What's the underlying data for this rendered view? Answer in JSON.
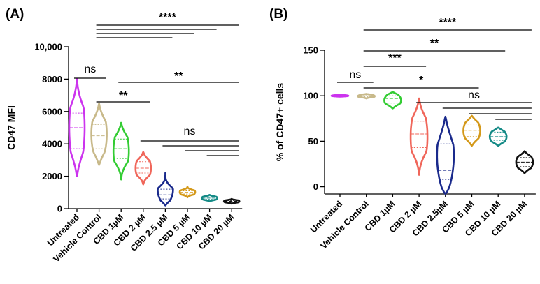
{
  "chart_data": [
    {
      "panel_label": "(A)",
      "type": "violin",
      "ylabel": "CD47 MFI",
      "ylim": [
        0,
        10000
      ],
      "yticks": [
        0,
        2000,
        4000,
        6000,
        8000,
        10000
      ],
      "ytick_labels": [
        "0",
        "2000",
        "4000",
        "6000",
        "8000",
        "10,000"
      ],
      "categories": [
        "Untreated",
        "Vehicle Control",
        "CBD 1µM",
        "CBD 2 µM",
        "CBD 2.5 µM",
        "CBD 5 µM",
        "CBD 10 µM",
        "CBD 20 µM"
      ],
      "series": [
        {
          "category": "Untreated",
          "color": "#cc33ee",
          "min": 2000,
          "max": 8000,
          "q1": 3700,
          "median": 5000,
          "q3": 5900
        },
        {
          "category": "Vehicle Control",
          "color": "#c8b98a",
          "min": 2700,
          "max": 6500,
          "q1": 3700,
          "median": 4500,
          "q3": 5200
        },
        {
          "category": "CBD 1µM",
          "color": "#33cc33",
          "min": 1800,
          "max": 5300,
          "q1": 3100,
          "median": 3700,
          "q3": 4300
        },
        {
          "category": "CBD 2 µM",
          "color": "#f0665a",
          "min": 1500,
          "max": 3500,
          "q1": 2200,
          "median": 2500,
          "q3": 2900
        },
        {
          "category": "CBD 2.5 µM",
          "color": "#1a2a8c",
          "min": 200,
          "max": 2200,
          "q1": 600,
          "median": 850,
          "q3": 1200
        },
        {
          "category": "CBD 5 µM",
          "color": "#d4991a",
          "min": 700,
          "max": 1350,
          "q1": 900,
          "median": 1000,
          "q3": 1100
        },
        {
          "category": "CBD 10 µM",
          "color": "#148a86",
          "min": 450,
          "max": 850,
          "q1": 570,
          "median": 650,
          "q3": 720
        },
        {
          "category": "CBD 20 µM",
          "color": "#111111",
          "min": 300,
          "max": 600,
          "q1": 400,
          "median": 450,
          "q3": 500
        }
      ],
      "significance": [
        {
          "from": 0,
          "to": 1,
          "label": "ns"
        },
        {
          "from": 1,
          "to": 3,
          "label": "**"
        },
        {
          "from": 2,
          "to": 7,
          "label": "**"
        },
        {
          "from": 3,
          "to": 7,
          "label": "ns"
        },
        {
          "from": 4,
          "to": 7,
          "label": ""
        },
        {
          "from": 5,
          "to": 7,
          "label": ""
        },
        {
          "from": 6,
          "to": 7,
          "label": ""
        },
        {
          "from": 1,
          "to": 7,
          "label": "****"
        },
        {
          "from": 1,
          "to": 6,
          "label": ""
        },
        {
          "from": 1,
          "to": 5,
          "label": ""
        },
        {
          "from": 1,
          "to": 4,
          "label": ""
        }
      ]
    },
    {
      "panel_label": "(B)",
      "type": "violin",
      "ylabel": "% of CD47+ cells",
      "ylim": [
        -8,
        150
      ],
      "yticks": [
        0,
        50,
        100,
        150
      ],
      "ytick_labels": [
        "0",
        "50",
        "100",
        "150"
      ],
      "categories": [
        "Untreated",
        "Vehicle Control",
        "CBD 1µM",
        "CBD 2 µM",
        "CBD 2.5µM",
        "CBD 5 µM",
        "CBD 10 µM",
        "CBD 20 µM"
      ],
      "series": [
        {
          "category": "Untreated",
          "color": "#cc33ee",
          "min": 99,
          "max": 101,
          "q1": 99.5,
          "median": 100,
          "q3": 100.5
        },
        {
          "category": "Vehicle Control",
          "color": "#c8b98a",
          "min": 97,
          "max": 102,
          "q1": 99,
          "median": 100,
          "q3": 101
        },
        {
          "category": "CBD 1µM",
          "color": "#33cc33",
          "min": 86,
          "max": 104,
          "q1": 92,
          "median": 97,
          "q3": 100
        },
        {
          "category": "CBD 2 µM",
          "color": "#f0665a",
          "min": 13,
          "max": 97,
          "q1": 43,
          "median": 58,
          "q3": 72
        },
        {
          "category": "CBD 2.5µM",
          "color": "#1a2a8c",
          "min": -8,
          "max": 77,
          "q1": 8,
          "median": 18,
          "q3": 47
        },
        {
          "category": "CBD 5 µM",
          "color": "#d4991a",
          "min": 45,
          "max": 78,
          "q1": 55,
          "median": 62,
          "q3": 69
        },
        {
          "category": "CBD 10 µM",
          "color": "#148a86",
          "min": 45,
          "max": 65,
          "q1": 51,
          "median": 55,
          "q3": 60
        },
        {
          "category": "CBD 20 µM",
          "color": "#111111",
          "min": 15,
          "max": 39,
          "q1": 22,
          "median": 27,
          "q3": 32
        }
      ],
      "significance": [
        {
          "from": 0,
          "to": 1,
          "label": "ns"
        },
        {
          "from": 1,
          "to": 3,
          "label": "***"
        },
        {
          "from": 1,
          "to": 5,
          "label": "*"
        },
        {
          "from": 1,
          "to": 6,
          "label": "**"
        },
        {
          "from": 1,
          "to": 7,
          "label": "****"
        },
        {
          "from": 3,
          "to": 7,
          "label": "ns"
        },
        {
          "from": 4,
          "to": 7,
          "label": ""
        },
        {
          "from": 5,
          "to": 7,
          "label": ""
        },
        {
          "from": 6,
          "to": 7,
          "label": ""
        }
      ]
    }
  ]
}
